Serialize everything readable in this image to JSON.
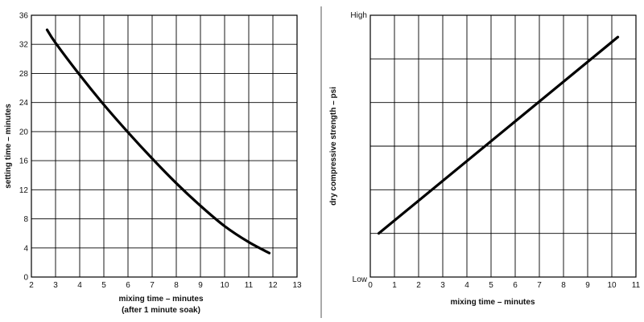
{
  "charts": [
    {
      "type": "line",
      "xlabel": "mixing time – minutes",
      "xlabel2": "(after 1 minute soak)",
      "ylabel": "setting time – minutes",
      "xlim": [
        2,
        13
      ],
      "ylim": [
        0,
        36
      ],
      "x_ticks": [
        "2",
        "3",
        "4",
        "5",
        "6",
        "7",
        "8",
        "9",
        "10",
        "11",
        "12",
        "13"
      ],
      "y_ticks": [
        "0",
        "4",
        "8",
        "12",
        "16",
        "20",
        "24",
        "28",
        "32",
        "36"
      ],
      "grid": true,
      "series": [
        {
          "x": [
            2.65,
            3,
            4,
            5,
            6,
            7,
            8,
            9,
            10,
            11,
            11.85
          ],
          "y": [
            34.0,
            32.2,
            27.8,
            23.7,
            19.9,
            16.3,
            12.9,
            9.8,
            7.0,
            4.8,
            3.3
          ]
        }
      ]
    },
    {
      "type": "line",
      "xlabel": "mixing time – minutes",
      "ylabel": "dry compressive strength – psi",
      "xlim": [
        0,
        11
      ],
      "ylim": [
        0,
        6
      ],
      "x_ticks": [
        "0",
        "1",
        "2",
        "3",
        "4",
        "5",
        "6",
        "7",
        "8",
        "9",
        "10",
        "11"
      ],
      "y_tick_labels": {
        "low": "Low",
        "high": "High"
      },
      "grid": true,
      "series": [
        {
          "x": [
            0.35,
            10.25
          ],
          "y": [
            1.0,
            5.5
          ]
        }
      ]
    }
  ]
}
